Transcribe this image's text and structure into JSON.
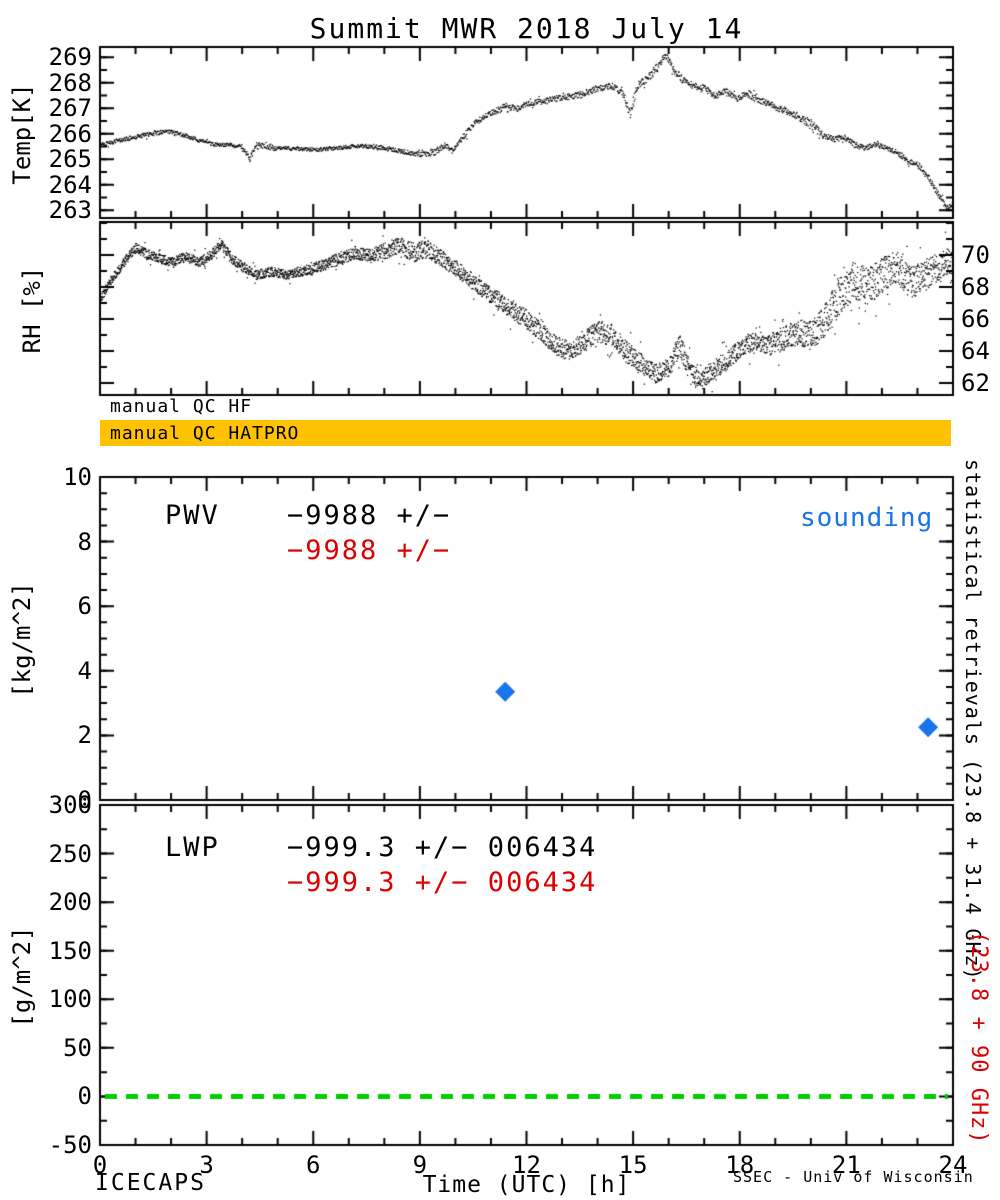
{
  "title": "Summit MWR 2018 July 14",
  "x_axis": {
    "label": "Time (UTC) [h]",
    "min": 0,
    "max": 24,
    "major_ticks": [
      0,
      3,
      6,
      9,
      12,
      15,
      18,
      21,
      24
    ],
    "minor_step": 1
  },
  "qc": {
    "hf_label": "manual QC HF",
    "hatpro_label": "manual QC HATPRO",
    "bar_color": "#FFC200"
  },
  "side_labels": {
    "statistical": "statistical retrievals (23.8 + 31.4 GHz)",
    "lwp_freq": "(23.8 + 90 GHz)"
  },
  "footer": {
    "left": "ICECAPS",
    "right": "SSEC - Univ of Wisconsin"
  },
  "colors": {
    "sounding_blue": "#1874E8",
    "stats_red": "#DD0000",
    "zero_line_green": "#00CC00",
    "data_black": "#000000"
  },
  "chart_data": [
    {
      "id": "temp",
      "panel": "temp",
      "type": "scatter",
      "ylabel": "Temp[K]",
      "ylim": [
        262.7,
        269.4
      ],
      "yticks": [
        263,
        264,
        265,
        266,
        267,
        268,
        269
      ],
      "ytick_side": "left",
      "yminor": 0.5,
      "x_units": "hours UTC",
      "series_anchors": [
        [
          0,
          265.6,
          0.08
        ],
        [
          0.5,
          265.75,
          0.08
        ],
        [
          1,
          265.9,
          0.08
        ],
        [
          1.5,
          266.05,
          0.1
        ],
        [
          2,
          266.1,
          0.08
        ],
        [
          2.4,
          265.95,
          0.08
        ],
        [
          2.8,
          265.75,
          0.07
        ],
        [
          3.2,
          265.6,
          0.07
        ],
        [
          3.6,
          265.6,
          0.07
        ],
        [
          4,
          265.5,
          0.1
        ],
        [
          4.2,
          265.05,
          0.12
        ],
        [
          4.4,
          265.6,
          0.1
        ],
        [
          4.8,
          265.45,
          0.08
        ],
        [
          5.4,
          265.45,
          0.07
        ],
        [
          6,
          265.4,
          0.07
        ],
        [
          6.6,
          265.45,
          0.07
        ],
        [
          7.2,
          265.55,
          0.08
        ],
        [
          7.8,
          265.5,
          0.08
        ],
        [
          8.4,
          265.35,
          0.08
        ],
        [
          9,
          265.2,
          0.1
        ],
        [
          9.4,
          265.3,
          0.12
        ],
        [
          9.7,
          265.6,
          0.12
        ],
        [
          9.9,
          265.35,
          0.1
        ],
        [
          10.2,
          265.9,
          0.12
        ],
        [
          10.5,
          266.4,
          0.12
        ],
        [
          10.8,
          266.7,
          0.1
        ],
        [
          11.1,
          266.9,
          0.12
        ],
        [
          11.4,
          267.1,
          0.12
        ],
        [
          11.7,
          267.0,
          0.1
        ],
        [
          12,
          267.2,
          0.1
        ],
        [
          12.5,
          267.3,
          0.12
        ],
        [
          13,
          267.45,
          0.12
        ],
        [
          13.5,
          267.55,
          0.13
        ],
        [
          14,
          267.8,
          0.12
        ],
        [
          14.4,
          267.9,
          0.12
        ],
        [
          14.7,
          267.6,
          0.15
        ],
        [
          14.9,
          266.8,
          0.2
        ],
        [
          15.1,
          267.9,
          0.15
        ],
        [
          15.4,
          268.2,
          0.15
        ],
        [
          15.7,
          268.7,
          0.15
        ],
        [
          15.9,
          269.1,
          0.12
        ],
        [
          16.1,
          268.6,
          0.15
        ],
        [
          16.4,
          268.1,
          0.15
        ],
        [
          16.7,
          267.9,
          0.12
        ],
        [
          17,
          267.8,
          0.12
        ],
        [
          17.3,
          267.5,
          0.15
        ],
        [
          17.6,
          267.7,
          0.12
        ],
        [
          17.9,
          267.4,
          0.12
        ],
        [
          18.2,
          267.6,
          0.15
        ],
        [
          18.5,
          267.35,
          0.12
        ],
        [
          18.8,
          267.2,
          0.12
        ],
        [
          19.1,
          267.0,
          0.12
        ],
        [
          19.4,
          266.85,
          0.12
        ],
        [
          19.7,
          266.6,
          0.15
        ],
        [
          20,
          266.4,
          0.2
        ],
        [
          20.3,
          266.0,
          0.15
        ],
        [
          20.6,
          265.8,
          0.12
        ],
        [
          20.9,
          265.9,
          0.12
        ],
        [
          21.2,
          265.6,
          0.12
        ],
        [
          21.5,
          265.45,
          0.1
        ],
        [
          21.8,
          265.6,
          0.1
        ],
        [
          22.1,
          265.45,
          0.1
        ],
        [
          22.4,
          265.3,
          0.1
        ],
        [
          22.7,
          265.0,
          0.12
        ],
        [
          23,
          264.8,
          0.12
        ],
        [
          23.3,
          264.3,
          0.12
        ],
        [
          23.6,
          263.6,
          0.12
        ],
        [
          23.8,
          263.1,
          0.1
        ],
        [
          24,
          263.3,
          0.1
        ]
      ]
    },
    {
      "id": "rh",
      "panel": "rh",
      "type": "scatter",
      "ylabel": "RH [%]",
      "ylim": [
        61.25,
        72.06
      ],
      "yticks": [
        62,
        64,
        66,
        68,
        70
      ],
      "ytick_side": "right",
      "yminor": 1,
      "x_units": "hours UTC",
      "series_anchors": [
        [
          0,
          67.3,
          0.3
        ],
        [
          0.3,
          68.5,
          0.3
        ],
        [
          0.6,
          69.4,
          0.3
        ],
        [
          1,
          70.5,
          0.3
        ],
        [
          1.3,
          70.1,
          0.3
        ],
        [
          1.7,
          69.8,
          0.3
        ],
        [
          2,
          69.6,
          0.3
        ],
        [
          2.4,
          69.9,
          0.3
        ],
        [
          2.8,
          69.6,
          0.3
        ],
        [
          3.1,
          70.0,
          0.3
        ],
        [
          3.4,
          70.7,
          0.3
        ],
        [
          3.7,
          69.8,
          0.3
        ],
        [
          4,
          69.3,
          0.3
        ],
        [
          4.4,
          68.8,
          0.3
        ],
        [
          4.8,
          69.0,
          0.3
        ],
        [
          5.2,
          68.8,
          0.3
        ],
        [
          5.6,
          69.0,
          0.3
        ],
        [
          6,
          69.2,
          0.35
        ],
        [
          6.4,
          69.5,
          0.35
        ],
        [
          6.8,
          69.9,
          0.4
        ],
        [
          7.2,
          70.2,
          0.4
        ],
        [
          7.6,
          70.0,
          0.45
        ],
        [
          8,
          70.3,
          0.5
        ],
        [
          8.4,
          70.6,
          0.55
        ],
        [
          8.8,
          70.2,
          0.6
        ],
        [
          9.2,
          70.4,
          0.55
        ],
        [
          9.6,
          69.8,
          0.5
        ],
        [
          10,
          69.2,
          0.5
        ],
        [
          10.4,
          68.5,
          0.5
        ],
        [
          10.8,
          67.8,
          0.5
        ],
        [
          11.2,
          67.2,
          0.55
        ],
        [
          11.6,
          66.6,
          0.6
        ],
        [
          12,
          66.0,
          0.6
        ],
        [
          12.4,
          65.2,
          0.6
        ],
        [
          12.8,
          64.4,
          0.6
        ],
        [
          13.2,
          64.0,
          0.6
        ],
        [
          13.6,
          64.6,
          0.65
        ],
        [
          14,
          65.3,
          0.7
        ],
        [
          14.4,
          65.0,
          0.7
        ],
        [
          14.8,
          64.0,
          0.7
        ],
        [
          15.2,
          63.3,
          0.6
        ],
        [
          15.6,
          62.6,
          0.6
        ],
        [
          16,
          63.0,
          0.6
        ],
        [
          16.3,
          64.5,
          0.7
        ],
        [
          16.6,
          62.6,
          0.7
        ],
        [
          16.9,
          62.2,
          0.6
        ],
        [
          17.2,
          62.8,
          0.6
        ],
        [
          17.6,
          63.4,
          0.6
        ],
        [
          18,
          64.2,
          0.6
        ],
        [
          18.4,
          64.8,
          0.65
        ],
        [
          18.8,
          64.4,
          0.7
        ],
        [
          19.2,
          64.8,
          0.75
        ],
        [
          19.6,
          65.2,
          0.8
        ],
        [
          20,
          65.0,
          0.9
        ],
        [
          20.4,
          66.0,
          1.0
        ],
        [
          20.8,
          67.5,
          1.2
        ],
        [
          21.2,
          68.5,
          1.2
        ],
        [
          21.6,
          68.0,
          1.2
        ],
        [
          22,
          68.8,
          1.1
        ],
        [
          22.4,
          69.3,
          1.0
        ],
        [
          22.8,
          68.3,
          1.0
        ],
        [
          23.2,
          68.8,
          1.0
        ],
        [
          23.6,
          69.3,
          1.0
        ],
        [
          24,
          69.8,
          0.8
        ]
      ]
    },
    {
      "id": "pwv",
      "panel": "pwv",
      "type": "scatter",
      "ylabel": "[kg/m^2]",
      "ylim": [
        0,
        10
      ],
      "yticks": [
        0,
        2,
        4,
        6,
        8,
        10
      ],
      "ytick_side": "left",
      "yminor": 0.5,
      "marker": "diamond",
      "points": [
        [
          11.4,
          3.35
        ],
        [
          23.3,
          2.25
        ]
      ],
      "annotations": {
        "name": "PWV",
        "stat_black": "−9988 +/−",
        "stat_red": "−9988 +/−",
        "legend": "sounding"
      }
    },
    {
      "id": "lwp",
      "panel": "lwp",
      "type": "line",
      "ylabel": "[g/m^2]",
      "ylim": [
        -50,
        300
      ],
      "yticks": [
        -50,
        0,
        50,
        100,
        150,
        200,
        250,
        300
      ],
      "ytick_side": "left",
      "yminor": 25,
      "zero_line_value": 0,
      "annotations": {
        "name": "LWP",
        "stat_black": "−999.3 +/− 006434",
        "stat_red": "−999.3 +/− 006434"
      }
    }
  ]
}
